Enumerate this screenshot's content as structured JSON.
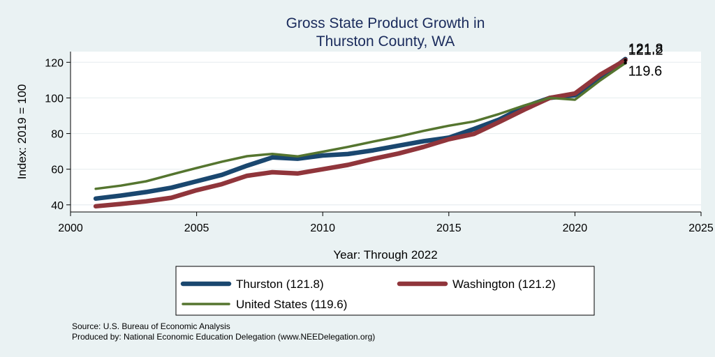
{
  "chart_data": {
    "type": "line",
    "title_lines": [
      "Gross State Product Growth in",
      "Thurston County, WA"
    ],
    "xlabel": "Year: Through 2022",
    "ylabel": "Index: 2019 = 100",
    "xlim": [
      2000,
      2025
    ],
    "ylim": [
      36,
      126
    ],
    "x_ticks": [
      2000,
      2005,
      2010,
      2015,
      2020,
      2025
    ],
    "y_ticks": [
      40,
      60,
      80,
      100,
      120
    ],
    "grid": true,
    "x": [
      2001,
      2002,
      2003,
      2004,
      2005,
      2006,
      2007,
      2008,
      2009,
      2010,
      2011,
      2012,
      2013,
      2014,
      2015,
      2016,
      2017,
      2018,
      2019,
      2020,
      2021,
      2022
    ],
    "series": [
      {
        "name": "Thurston",
        "legend_label": "Thurston  (121.8)",
        "color": "#1a476f",
        "values": [
          43.5,
          45.2,
          47.2,
          49.6,
          53.2,
          56.8,
          62.0,
          66.6,
          65.9,
          67.7,
          68.5,
          70.6,
          73.2,
          75.7,
          77.7,
          82.6,
          87.9,
          95.0,
          100.0,
          101.5,
          111.0,
          121.8
        ],
        "end_label": "121.8"
      },
      {
        "name": "Washington",
        "legend_label": "Washington (121.2)",
        "color": "#90353b",
        "values": [
          39.2,
          40.5,
          42.0,
          44.0,
          48.2,
          51.6,
          56.3,
          58.3,
          57.6,
          60.0,
          62.4,
          65.8,
          68.8,
          72.5,
          76.8,
          79.8,
          86.5,
          93.5,
          100.0,
          102.5,
          113.0,
          121.2
        ],
        "end_label": "121.2"
      },
      {
        "name": "United States",
        "legend_label": "United States (119.6)",
        "color": "#55752f",
        "values": [
          49.0,
          50.8,
          53.2,
          57.0,
          60.7,
          64.2,
          67.3,
          68.6,
          67.2,
          69.8,
          72.5,
          75.5,
          78.3,
          81.5,
          84.4,
          86.8,
          91.0,
          95.8,
          100.0,
          99.0,
          109.8,
          119.6
        ],
        "end_label": "119.6"
      }
    ],
    "legend_position": "bottom"
  },
  "notes": {
    "source": "Source: U.S. Bureau of Economic Analysis",
    "produced_by": "Produced by: National Economic Education Delegation (www.NEEDelegation.org)"
  }
}
